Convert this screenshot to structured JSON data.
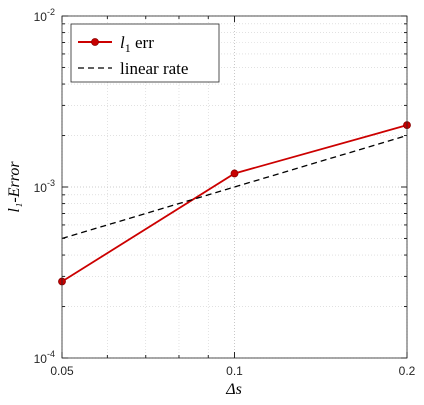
{
  "chart_data": {
    "type": "line",
    "xlabel": "Δs",
    "ylabel": "l₁-Error",
    "xscale": "log",
    "yscale": "log",
    "xlim": [
      0.05,
      0.2
    ],
    "ylim": [
      0.0001,
      0.01
    ],
    "grid": true,
    "grid_minor": true,
    "legend_position": "top-left",
    "x_ticks": [
      {
        "value": 0.05,
        "label": "0.05"
      },
      {
        "value": 0.1,
        "label": "0.1"
      },
      {
        "value": 0.2,
        "label": "0.2"
      }
    ],
    "y_ticks": [
      {
        "value": 0.0001,
        "base": "10",
        "exp": "-4"
      },
      {
        "value": 0.001,
        "base": "10",
        "exp": "-3"
      },
      {
        "value": 0.01,
        "base": "10",
        "exp": "-2"
      }
    ],
    "series": [
      {
        "name": "l₁ err",
        "legend_main": "l",
        "legend_sub": "1",
        "legend_rest": " err",
        "color": "#cc0000",
        "marker_fill": "#c80000",
        "line_style": "solid",
        "marker": "circle",
        "x": [
          0.05,
          0.1,
          0.2
        ],
        "y": [
          0.00028,
          0.0012,
          0.0023
        ]
      },
      {
        "name": "linear rate",
        "color": "#000000",
        "line_style": "dashed",
        "marker": "none",
        "x": [
          0.05,
          0.1,
          0.2
        ],
        "y": [
          0.0005,
          0.001,
          0.002
        ]
      }
    ]
  }
}
